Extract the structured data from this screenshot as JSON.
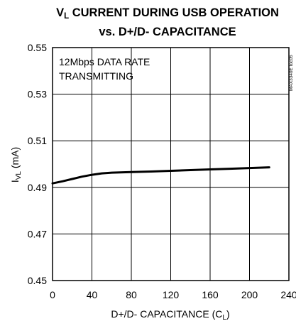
{
  "chart_data": {
    "type": "line",
    "title_sym": "V",
    "title_sub": "L",
    "title_line1_rest": " CURRENT DURING USB OPERATION",
    "title_line2": "vs. D+/D- CAPACITANCE",
    "ylabel_main": "I",
    "ylabel_sub": "VL",
    "ylabel_rest": " (mA)",
    "xlabel_main": "D+/D- CAPACITANCE (C",
    "xlabel_sub": "L",
    "xlabel_end": ")",
    "annotation_line1": "12Mbps DATA RATE",
    "annotation_line2": "TRANSMITTING",
    "part_number": "MAX3340E toc05",
    "xlim": [
      0,
      240
    ],
    "ylim": [
      0.45,
      0.55
    ],
    "x_ticks": [
      0,
      40,
      80,
      120,
      160,
      200,
      240
    ],
    "y_ticks": [
      "0.45",
      "0.47",
      "0.49",
      "0.51",
      "0.53",
      "0.55"
    ],
    "grid": true,
    "series": [
      {
        "x": [
          0,
          10,
          20,
          30,
          40,
          50,
          60,
          80,
          100,
          120,
          140,
          160,
          180,
          200,
          220
        ],
        "y": [
          0.4917,
          0.4926,
          0.4936,
          0.4946,
          0.4954,
          0.496,
          0.4963,
          0.4966,
          0.4968,
          0.4971,
          0.4974,
          0.4977,
          0.498,
          0.4983,
          0.4986
        ]
      }
    ]
  }
}
